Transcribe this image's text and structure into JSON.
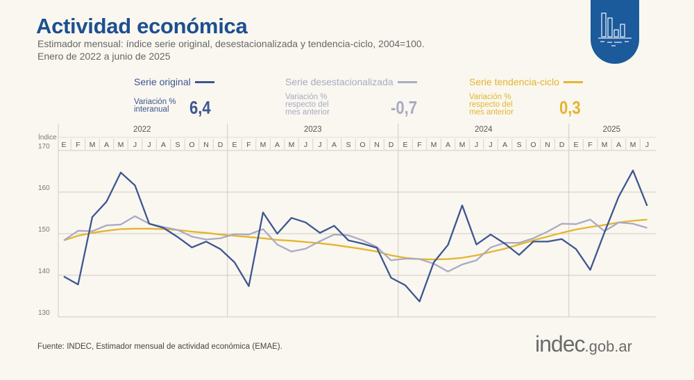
{
  "header": {
    "title": "Actividad económica",
    "subtitle_1": "Estimador mensual: índice serie original, desestacionalizada y tendencia-ciclo, 2004=100.",
    "subtitle_2": "Enero de 2022 a junio de 2025",
    "badge_icon": "bar-chart-icon"
  },
  "legend": [
    {
      "name": "Serie original",
      "desc": [
        "Variación %",
        "interanual"
      ],
      "value": "6,4",
      "color": "#3d5592"
    },
    {
      "name": "Serie desestacionalizada",
      "desc": [
        "Variación %",
        "respecto del",
        "mes anterior"
      ],
      "value": "-0,7",
      "color": "#a9aac4"
    },
    {
      "name": "Serie tendencia-ciclo",
      "desc": [
        "Variación %",
        "respecto del",
        "mes anterior"
      ],
      "value": "0,3",
      "color": "#e5b42e"
    }
  ],
  "chart_data": {
    "type": "line",
    "ylabel": "Índice",
    "ylim": [
      130,
      170
    ],
    "yticks": [
      "130",
      "140",
      "150",
      "160",
      "170"
    ],
    "years": [
      "2022",
      "2023",
      "2024",
      "2025"
    ],
    "months": [
      "E",
      "F",
      "M",
      "A",
      "M",
      "J",
      "J",
      "A",
      "S",
      "O",
      "N",
      "D",
      "E",
      "F",
      "M",
      "A",
      "M",
      "J",
      "J",
      "A",
      "S",
      "O",
      "N",
      "D",
      "E",
      "F",
      "M",
      "A",
      "M",
      "J",
      "J",
      "A",
      "S",
      "O",
      "N",
      "D",
      "E",
      "F",
      "M",
      "A",
      "M",
      "J"
    ],
    "grid": true,
    "series": [
      {
        "name": "Serie original",
        "color": "#3d5592",
        "values": [
          139.7,
          137.8,
          154.0,
          157.7,
          164.7,
          161.6,
          152.4,
          151.4,
          149.2,
          146.7,
          148.1,
          146.3,
          143.1,
          137.4,
          155.1,
          150.0,
          153.8,
          152.7,
          150.2,
          151.9,
          148.4,
          147.6,
          146.6,
          139.4,
          137.6,
          133.7,
          143.1,
          147.3,
          156.8,
          147.4,
          149.8,
          147.6,
          144.9,
          148.1,
          148.1,
          148.7,
          146.3,
          141.3,
          150.3,
          158.9,
          165.2,
          156.7
        ]
      },
      {
        "name": "Serie desestacionalizada",
        "color": "#a9aac4",
        "values": [
          148.4,
          150.7,
          150.6,
          152.0,
          152.2,
          154.2,
          152.4,
          151.6,
          150.9,
          149.3,
          148.6,
          148.9,
          149.9,
          149.8,
          151.1,
          147.4,
          145.7,
          146.4,
          148.2,
          149.8,
          149.6,
          148.4,
          146.8,
          143.6,
          144.0,
          143.9,
          142.8,
          140.9,
          142.6,
          143.6,
          146.7,
          147.8,
          147.8,
          148.9,
          150.5,
          152.4,
          152.3,
          153.4,
          150.6,
          152.7,
          152.4,
          151.4
        ]
      },
      {
        "name": "Serie tendencia-ciclo",
        "color": "#e5b42e",
        "values": [
          148.4,
          149.5,
          150.2,
          150.7,
          151.1,
          151.2,
          151.2,
          151.1,
          150.9,
          150.5,
          150.2,
          149.8,
          149.5,
          149.2,
          148.9,
          148.5,
          148.3,
          148.0,
          147.7,
          147.3,
          146.8,
          146.3,
          145.7,
          144.8,
          144.2,
          143.9,
          143.8,
          143.9,
          144.2,
          144.8,
          145.6,
          146.4,
          147.4,
          148.4,
          149.3,
          150.2,
          151.0,
          151.6,
          152.1,
          152.7,
          153.1,
          153.4
        ]
      }
    ]
  },
  "footer": {
    "source": "Fuente: INDEC, Estimador mensual de actividad económica (EMAE).",
    "logo_main": "indec",
    "logo_domain": ".gob.ar"
  }
}
